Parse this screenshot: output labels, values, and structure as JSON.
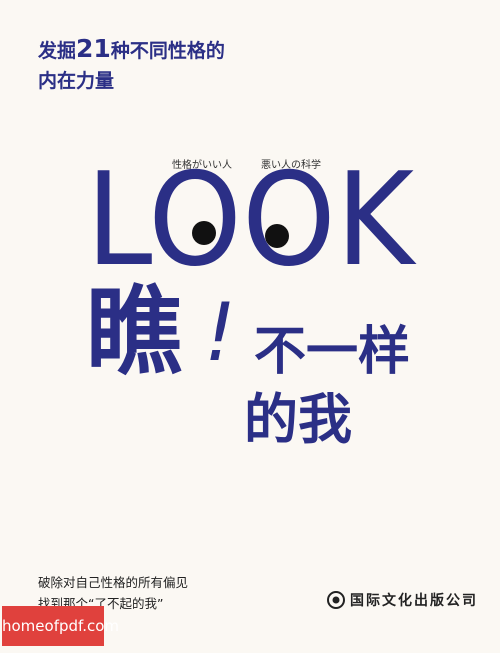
{
  "tagline_line1": [
    "发掘",
    "21",
    "种不同性格的"
  ],
  "tagline_line2": "内在力量",
  "subtitles": [
    "性格がいい人",
    "悪い人の科学"
  ],
  "title_en": "LOOK",
  "title_cn": {
    "main": "瞧",
    "mark": "!",
    "line1": "不一样",
    "line2": "的我"
  },
  "blurb": [
    "破除对自己性格的所有偏见",
    "找到那个“了不起的我”"
  ],
  "publisher": "国际文化出版公司",
  "watermark": "homeofpdf.com"
}
